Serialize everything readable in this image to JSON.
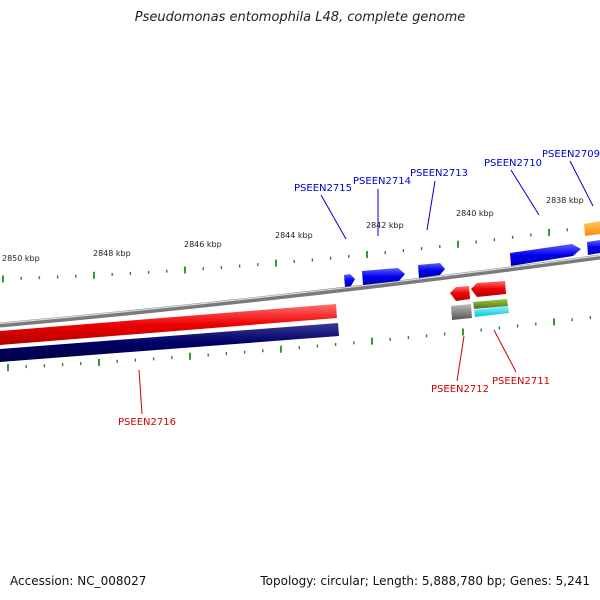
{
  "title": "Pseudomonas entomophila L48, complete genome",
  "footer": {
    "accession": "Accession: NC_008027",
    "summary": "Topology: circular; Length: 5,888,780 bp; Genes: 5,241"
  },
  "scale_labels": [
    "2850 kbp",
    "2848 kbp",
    "2846 kbp",
    "2844 kbp",
    "2842 kbp",
    "2840 kbp",
    "2838 kbp"
  ],
  "genes": {
    "forward": [
      "PSEEN2715",
      "PSEEN2714",
      "PSEEN2713",
      "PSEEN2710",
      "PSEEN2709"
    ],
    "reverse": [
      "PSEEN2716",
      "PSEEN2712",
      "PSEEN2711"
    ]
  },
  "colors": {
    "forward_strand": "#0000ee",
    "reverse_strand": "#ee0000",
    "backbone": "#888888",
    "ticks": "#228b22",
    "dark_navy": "#000066",
    "orange": "#ff9900"
  }
}
